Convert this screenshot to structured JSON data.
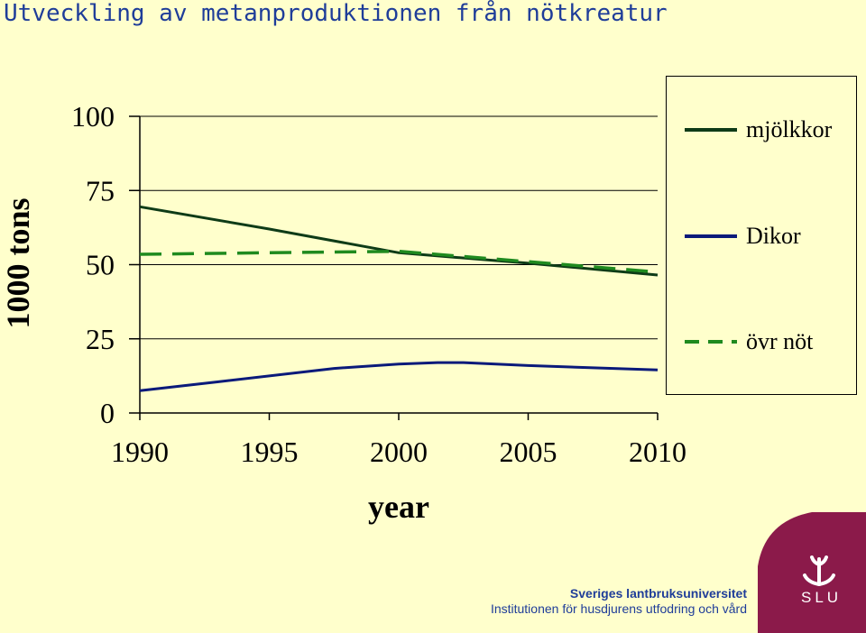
{
  "title": "Utveckling av metanproduktionen från nötkreatur",
  "chart_data": {
    "type": "line",
    "xlabel": "year",
    "ylabel": "1000 tons",
    "xlim": [
      1990,
      2010
    ],
    "ylim": [
      0,
      100
    ],
    "x_ticks": [
      "1990",
      "1995",
      "2000",
      "2005",
      "2010"
    ],
    "y_ticks": [
      "0",
      "25",
      "50",
      "75",
      "100"
    ],
    "grid": "horizontal",
    "legend_position": "right",
    "series": [
      {
        "name": "mjölkkor",
        "color": "#0E3B17",
        "style": "solid",
        "x": [
          1990,
          1995,
          2000,
          2005,
          2010
        ],
        "values": [
          69.5,
          62,
          54,
          50.5,
          46.5
        ]
      },
      {
        "name": "Dikor",
        "color": "#0A1A7A",
        "style": "solid",
        "x": [
          1990,
          1993,
          1997.5,
          2000,
          2001.5,
          2002.5,
          2005,
          2010
        ],
        "values": [
          7.5,
          10.5,
          15,
          16.5,
          17,
          17,
          16,
          14.5
        ]
      },
      {
        "name": "övr nöt",
        "color": "#1F8A1F",
        "style": "dashed",
        "x": [
          1990,
          1995,
          2000,
          2005,
          2010
        ],
        "values": [
          53.5,
          54,
          54.5,
          51,
          47.5
        ]
      }
    ]
  },
  "footer": {
    "line1": "Sveriges lantbruksuniversitet",
    "line2": "Institutionen för husdjurens utfodring och vård"
  },
  "logo": {
    "text": "SLU",
    "color": "#8B1A4A"
  }
}
